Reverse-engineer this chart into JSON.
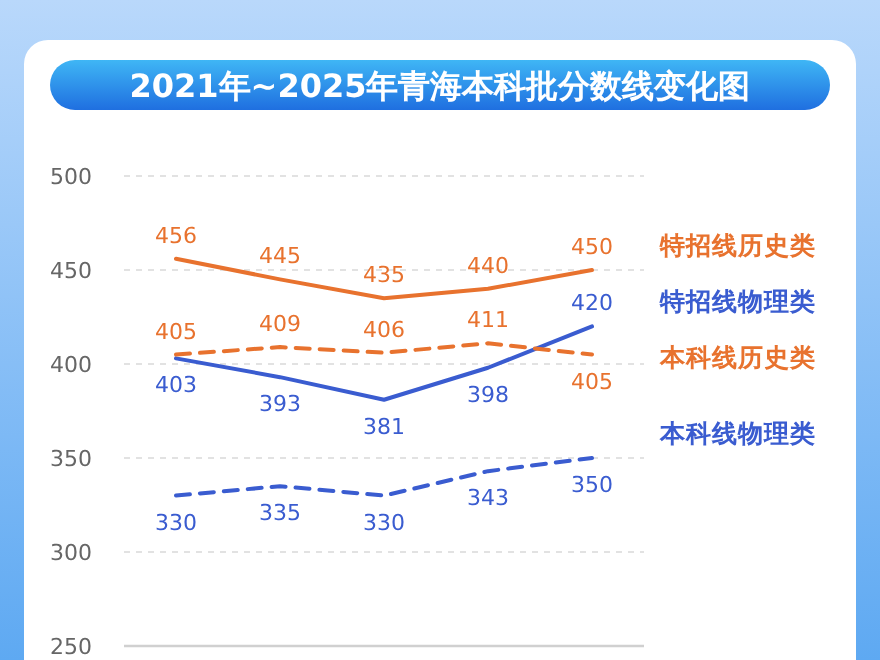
{
  "chart_data": {
    "type": "line",
    "title": "2021年~2025年青海本科批分数线变化图",
    "categories": [
      null,
      null,
      null,
      null,
      null
    ],
    "ylim": [
      250,
      500
    ],
    "yticks": [
      250,
      300,
      350,
      400,
      450,
      500
    ],
    "grid": "y",
    "data_labels": true,
    "series": [
      {
        "name": "特招线历史类",
        "color": "#e8722e",
        "line_style": "solid",
        "values": [
          456,
          445,
          435,
          440,
          450
        ]
      },
      {
        "name": "特招线物理类",
        "color": "#3a5cd0",
        "line_style": "solid",
        "values": [
          403,
          393,
          381,
          398,
          420
        ]
      },
      {
        "name": "本科线历史类",
        "color": "#e8722e",
        "line_style": "dashed",
        "values": [
          405,
          409,
          406,
          411,
          405
        ]
      },
      {
        "name": "本科线物理类",
        "color": "#3a5cd0",
        "line_style": "dashed",
        "values": [
          330,
          335,
          330,
          343,
          350
        ]
      }
    ]
  }
}
